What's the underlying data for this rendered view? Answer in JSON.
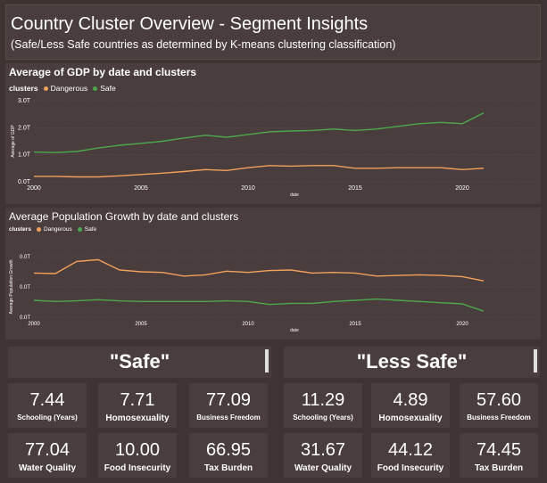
{
  "header": {
    "title": "Country Cluster Overview - Segment Insights",
    "subtitle": "(Safe/Less Safe countries as determined by K-means clustering classification)"
  },
  "colors": {
    "dangerous": "#f2a15c",
    "safe": "#4ca84c",
    "grid": "#5e5050"
  },
  "chart_data": [
    {
      "type": "line",
      "title": "Average of GDP by date and clusters",
      "legend_title": "clusters",
      "xlabel": "date",
      "ylabel": "Average of GDP",
      "x_ticks": [
        "2000",
        "2005",
        "2010",
        "2015",
        "2020"
      ],
      "y_ticks": [
        "0.0T",
        "1.0T",
        "2.0T",
        "3.0T"
      ],
      "ylim": [
        0,
        3.0
      ],
      "xlim": [
        2000,
        2021
      ],
      "x": [
        2000,
        2001,
        2002,
        2003,
        2004,
        2005,
        2006,
        2007,
        2008,
        2009,
        2010,
        2011,
        2012,
        2013,
        2014,
        2015,
        2016,
        2017,
        2018,
        2019,
        2020,
        2021
      ],
      "series": [
        {
          "name": "Dangerous",
          "color": "#f2a15c",
          "values": [
            0.2,
            0.2,
            0.18,
            0.18,
            0.22,
            0.27,
            0.32,
            0.38,
            0.45,
            0.42,
            0.52,
            0.6,
            0.58,
            0.6,
            0.6,
            0.5,
            0.5,
            0.52,
            0.52,
            0.52,
            0.45,
            0.5
          ]
        },
        {
          "name": "Safe",
          "color": "#4ca84c",
          "values": [
            1.1,
            1.08,
            1.12,
            1.25,
            1.35,
            1.42,
            1.5,
            1.62,
            1.72,
            1.65,
            1.75,
            1.85,
            1.88,
            1.9,
            1.95,
            1.9,
            1.95,
            2.05,
            2.15,
            2.2,
            2.15,
            2.55
          ]
        }
      ]
    },
    {
      "type": "line",
      "title": "Average Population Growth by date and clusters",
      "legend_title": "clusters",
      "xlabel": "date",
      "ylabel": "Average Population Growth",
      "x_ticks": [
        "2000",
        "2005",
        "2010",
        "2015",
        "2020"
      ],
      "y_ticks": [
        "0.0T",
        "0.0T",
        "0.0T"
      ],
      "ylim": [
        0,
        1
      ],
      "xlim": [
        2000,
        2021
      ],
      "x": [
        2000,
        2001,
        2002,
        2003,
        2004,
        2005,
        2006,
        2007,
        2008,
        2009,
        2010,
        2011,
        2012,
        2013,
        2014,
        2015,
        2016,
        2017,
        2018,
        2019,
        2020,
        2021
      ],
      "series": [
        {
          "name": "Dangerous",
          "color": "#f2a15c",
          "values": [
            0.73,
            0.72,
            0.92,
            0.95,
            0.78,
            0.75,
            0.74,
            0.68,
            0.7,
            0.76,
            0.74,
            0.77,
            0.78,
            0.73,
            0.74,
            0.73,
            0.68,
            0.69,
            0.7,
            0.69,
            0.67,
            0.6
          ]
        },
        {
          "name": "Safe",
          "color": "#4ca84c",
          "values": [
            0.28,
            0.26,
            0.27,
            0.29,
            0.27,
            0.26,
            0.26,
            0.26,
            0.26,
            0.27,
            0.26,
            0.21,
            0.23,
            0.23,
            0.26,
            0.28,
            0.3,
            0.28,
            0.26,
            0.24,
            0.22,
            0.1
          ]
        }
      ]
    }
  ],
  "segments": {
    "safe": {
      "label": "\"Safe\"",
      "cards": [
        {
          "value": "7.44",
          "label": "Schooling (Years)"
        },
        {
          "value": "7.71",
          "label": "Homosexuality"
        },
        {
          "value": "77.09",
          "label": "Business Freedom"
        },
        {
          "value": "77.04",
          "label": "Water Quality"
        },
        {
          "value": "10.00",
          "label": "Food Insecurity"
        },
        {
          "value": "66.95",
          "label": "Tax Burden"
        }
      ]
    },
    "less_safe": {
      "label": "\"Less Safe\"",
      "cards": [
        {
          "value": "11.29",
          "label": "Schooling (Years)"
        },
        {
          "value": "4.89",
          "label": "Homosexuality"
        },
        {
          "value": "57.60",
          "label": "Business Freedom"
        },
        {
          "value": "31.67",
          "label": "Water Quality"
        },
        {
          "value": "44.12",
          "label": "Food Insecurity"
        },
        {
          "value": "74.45",
          "label": "Tax Burden"
        }
      ]
    }
  }
}
